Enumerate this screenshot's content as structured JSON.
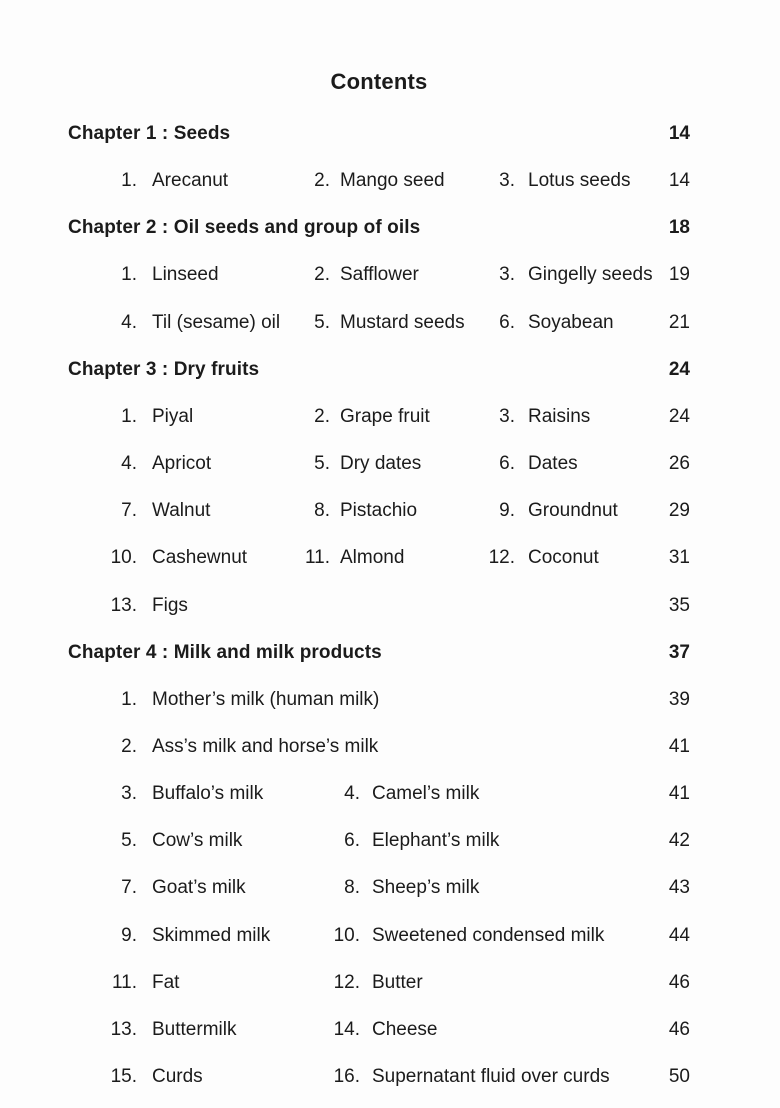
{
  "title": "Contents",
  "rows": [
    {
      "type": "chapter",
      "label": "Chapter 1 : Seeds",
      "page": "14"
    },
    {
      "type": "items",
      "cols": 3,
      "cells": [
        [
          "1.",
          "Arecanut"
        ],
        [
          "2.",
          "Mango seed"
        ],
        [
          "3.",
          "Lotus seeds"
        ]
      ],
      "page": "14"
    },
    {
      "type": "chapter",
      "label": "Chapter 2 : Oil seeds and group of oils",
      "page": "18"
    },
    {
      "type": "items",
      "cols": 3,
      "cells": [
        [
          "1.",
          "Linseed"
        ],
        [
          "2.",
          "Safflower"
        ],
        [
          "3.",
          "Gingelly seeds"
        ]
      ],
      "page": "19"
    },
    {
      "type": "items",
      "cols": 3,
      "cells": [
        [
          "4.",
          "Til (sesame) oil"
        ],
        [
          "5.",
          "Mustard seeds"
        ],
        [
          "6.",
          "Soyabean"
        ]
      ],
      "page": "21"
    },
    {
      "type": "chapter",
      "label": "Chapter 3 : Dry fruits",
      "page": "24"
    },
    {
      "type": "items",
      "cols": 3,
      "cells": [
        [
          "1.",
          "Piyal"
        ],
        [
          "2.",
          "Grape fruit"
        ],
        [
          "3.",
          "Raisins"
        ]
      ],
      "page": "24"
    },
    {
      "type": "items",
      "cols": 3,
      "cells": [
        [
          "4.",
          "Apricot"
        ],
        [
          "5.",
          "Dry dates"
        ],
        [
          "6.",
          "Dates"
        ]
      ],
      "page": "26"
    },
    {
      "type": "items",
      "cols": 3,
      "cells": [
        [
          "7.",
          "Walnut"
        ],
        [
          "8.",
          "Pistachio"
        ],
        [
          "9.",
          "Groundnut"
        ]
      ],
      "page": "29"
    },
    {
      "type": "items",
      "cols": 3,
      "cells": [
        [
          "10.",
          "Cashewnut"
        ],
        [
          "11.",
          "Almond"
        ],
        [
          "12.",
          "Coconut"
        ]
      ],
      "page": "31"
    },
    {
      "type": "items",
      "cols": 1,
      "cells": [
        [
          "13.",
          "Figs"
        ]
      ],
      "page": "35"
    },
    {
      "type": "chapter",
      "label": "Chapter 4 : Milk and milk products",
      "page": "37"
    },
    {
      "type": "items",
      "cols": 1,
      "cells": [
        [
          "1.",
          "Mother’s milk (human milk)"
        ]
      ],
      "page": "39"
    },
    {
      "type": "items",
      "cols": 1,
      "cells": [
        [
          "2.",
          "Ass’s milk and horse’s milk"
        ]
      ],
      "page": "41"
    },
    {
      "type": "items",
      "cols": 2,
      "cells": [
        [
          "3.",
          "Buffalo’s milk"
        ],
        [
          "4.",
          "Camel’s milk"
        ]
      ],
      "page": "41"
    },
    {
      "type": "items",
      "cols": 2,
      "cells": [
        [
          "5.",
          "Cow’s milk"
        ],
        [
          "6.",
          "Elephant’s milk"
        ]
      ],
      "page": "42"
    },
    {
      "type": "items",
      "cols": 2,
      "cells": [
        [
          "7.",
          "Goat’s milk"
        ],
        [
          "8.",
          "Sheep’s milk"
        ]
      ],
      "page": "43"
    },
    {
      "type": "items",
      "cols": 2,
      "cells": [
        [
          "9.",
          "Skimmed milk"
        ],
        [
          "10.",
          "Sweetened condensed milk"
        ]
      ],
      "page": "44"
    },
    {
      "type": "items",
      "cols": 2,
      "cells": [
        [
          "11.",
          "Fat"
        ],
        [
          "12.",
          "Butter"
        ]
      ],
      "page": "46"
    },
    {
      "type": "items",
      "cols": 2,
      "cells": [
        [
          "13.",
          "Buttermilk"
        ],
        [
          "14.",
          "Cheese"
        ]
      ],
      "page": "46"
    },
    {
      "type": "items",
      "cols": 2,
      "cells": [
        [
          "15.",
          "Curds"
        ],
        [
          "16.",
          "Supernatant fluid over curds"
        ]
      ],
      "page": "50"
    }
  ]
}
